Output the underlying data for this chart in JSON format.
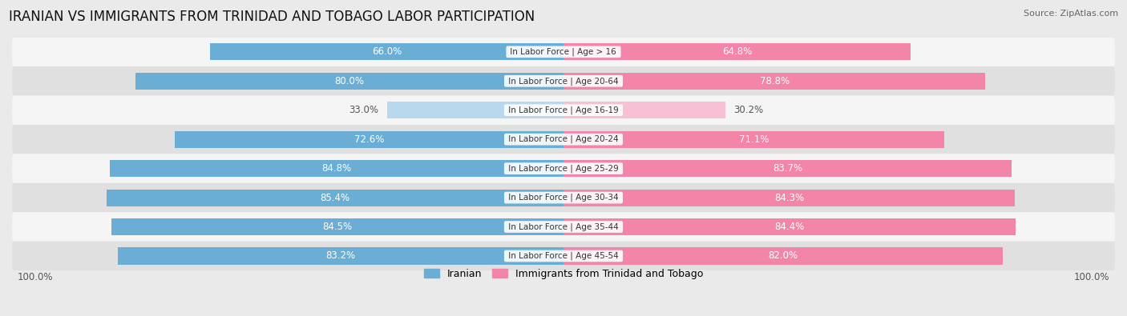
{
  "title": "IRANIAN VS IMMIGRANTS FROM TRINIDAD AND TOBAGO LABOR PARTICIPATION",
  "source": "Source: ZipAtlas.com",
  "categories": [
    "In Labor Force | Age > 16",
    "In Labor Force | Age 20-64",
    "In Labor Force | Age 16-19",
    "In Labor Force | Age 20-24",
    "In Labor Force | Age 25-29",
    "In Labor Force | Age 30-34",
    "In Labor Force | Age 35-44",
    "In Labor Force | Age 45-54"
  ],
  "iranian_values": [
    66.0,
    80.0,
    33.0,
    72.6,
    84.8,
    85.4,
    84.5,
    83.2
  ],
  "tobago_values": [
    64.8,
    78.8,
    30.2,
    71.1,
    83.7,
    84.3,
    84.4,
    82.0
  ],
  "iranian_color": "#6aaed6",
  "tobago_color": "#f285a8",
  "iranian_color_light": "#b8d8ee",
  "tobago_color_light": "#f7c0d4",
  "background_color": "#eaeaea",
  "row_bg_even": "#f5f5f5",
  "row_bg_odd": "#e0e0e0",
  "label_color_white": "#ffffff",
  "label_color_dark": "#555555",
  "title_fontsize": 12,
  "label_fontsize": 8.5,
  "cat_fontsize": 7.5,
  "legend_fontsize": 9,
  "max_value": 100.0,
  "bar_height": 0.58,
  "figsize": [
    14.06,
    3.95
  ],
  "dpi": 100
}
